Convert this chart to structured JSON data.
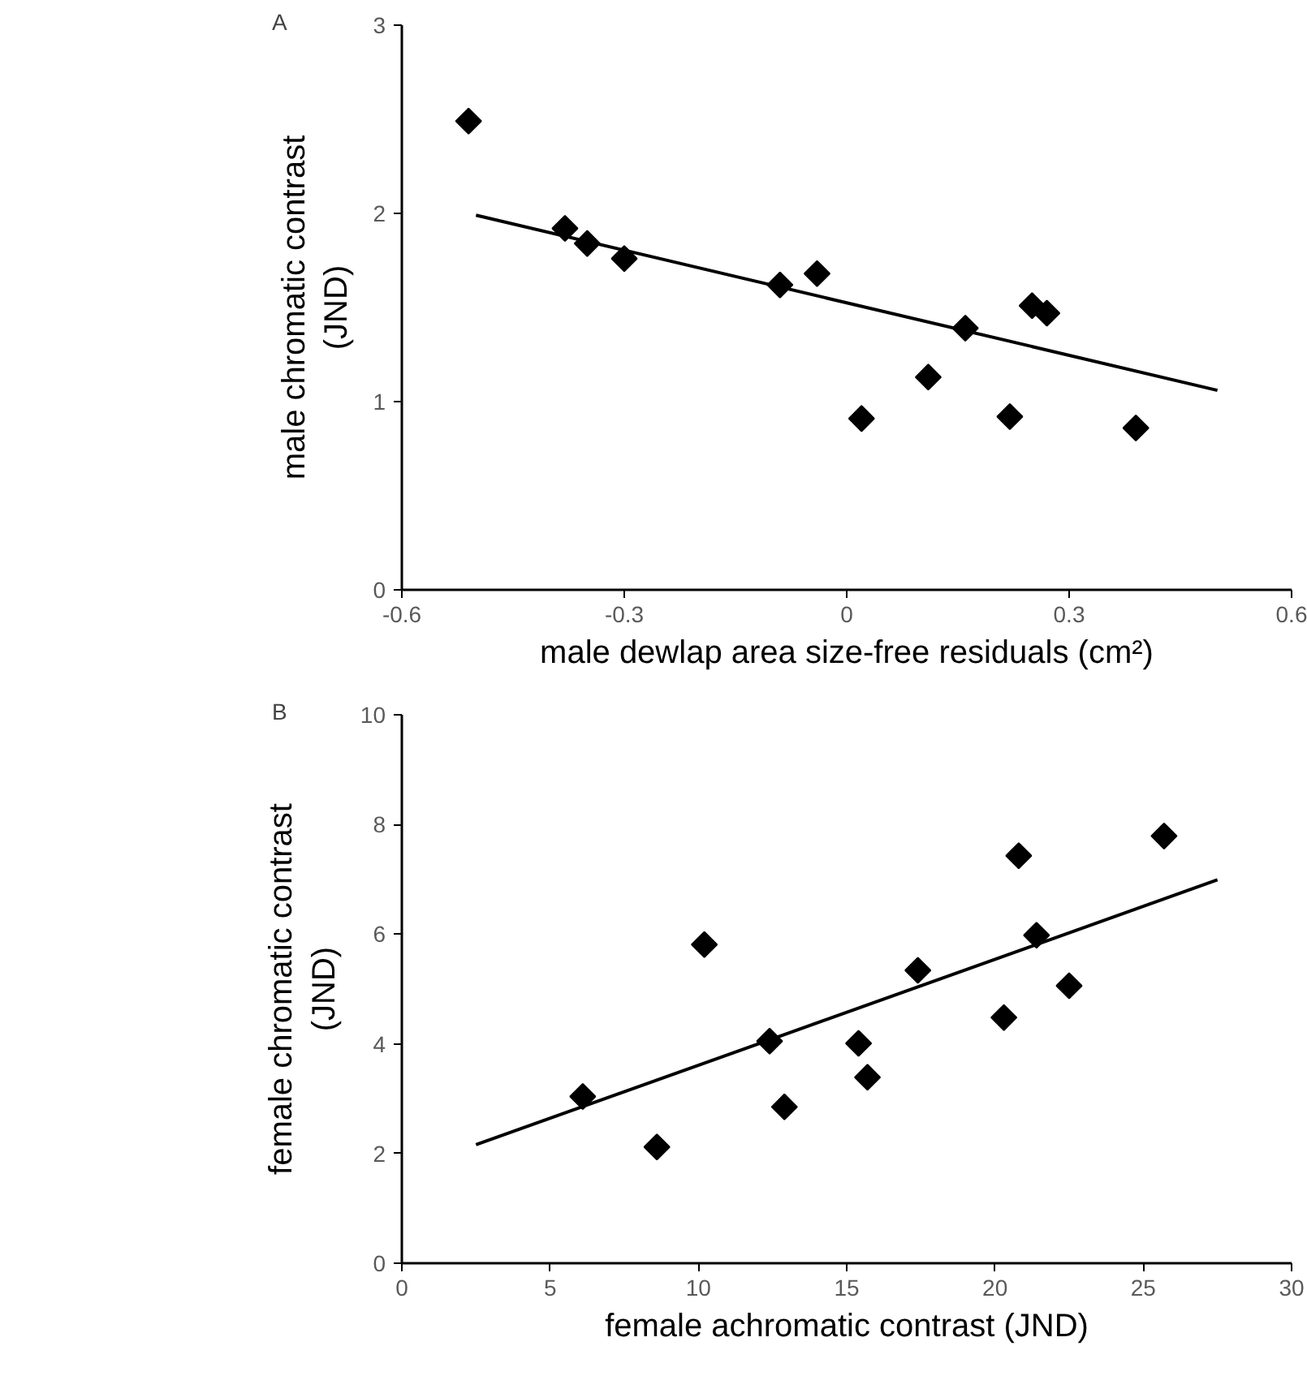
{
  "chart_data": [
    {
      "type": "scatter",
      "title": "A",
      "xlabel": "male dewlap area size-free residuals (cm²)",
      "ylabel": "male chromatic contrast\n(JND)",
      "grid": false,
      "xlim": [
        -0.6,
        0.6
      ],
      "xticks": [
        -0.6,
        -0.3,
        0,
        0.3,
        0.6
      ],
      "ylim": [
        0,
        3
      ],
      "yticks": [
        0,
        1,
        2,
        3
      ],
      "series": [
        {
          "color": "#000000",
          "marker": "diamond",
          "x": [
            -0.51,
            -0.38,
            -0.35,
            -0.3,
            -0.09,
            -0.04,
            0.02,
            0.11,
            0.16,
            0.25,
            0.27,
            0.22,
            0.39
          ],
          "values": [
            2.49,
            1.92,
            1.84,
            1.76,
            1.62,
            1.68,
            0.91,
            1.13,
            1.39,
            1.51,
            1.47,
            0.92,
            0.86
          ]
        },
        {
          "type": "line",
          "color": "#000000",
          "x": [
            -0.5,
            0.5
          ],
          "values": [
            1.99,
            1.06
          ]
        }
      ]
    },
    {
      "type": "scatter",
      "title": "B",
      "xlabel": "female achromatic contrast (JND)",
      "ylabel": "female chromatic contrast\n(JND)",
      "grid": false,
      "xlim": [
        0,
        30
      ],
      "xticks": [
        0,
        5,
        10,
        15,
        20,
        25,
        30
      ],
      "ylim": [
        0,
        10
      ],
      "yticks": [
        0,
        2,
        4,
        6,
        8,
        10
      ],
      "series": [
        {
          "color": "#000000",
          "marker": "diamond",
          "x": [
            6.1,
            8.6,
            10.2,
            12.4,
            12.9,
            15.4,
            15.7,
            17.4,
            20.3,
            20.8,
            21.4,
            22.5,
            25.7
          ],
          "values": [
            3.04,
            2.12,
            5.81,
            4.05,
            2.85,
            4.01,
            3.39,
            5.34,
            4.48,
            7.43,
            5.98,
            5.06,
            7.79
          ]
        },
        {
          "type": "line",
          "color": "#000000",
          "x": [
            2.5,
            27.5
          ],
          "values": [
            2.16,
            6.99
          ]
        }
      ]
    }
  ]
}
